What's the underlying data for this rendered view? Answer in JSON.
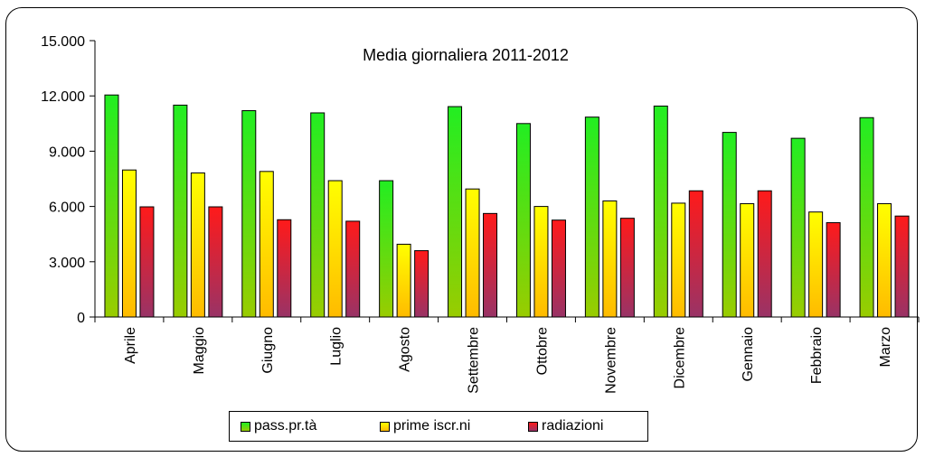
{
  "chart_data": {
    "type": "bar",
    "title": "Media giornaliera 2011-2012",
    "xlabel": "",
    "ylabel": "",
    "ylim": [
      0,
      15000
    ],
    "yticks": [
      "0",
      "3.000",
      "6.000",
      "9.000",
      "12.000",
      "15.000"
    ],
    "ytick_values": [
      0,
      3000,
      6000,
      9000,
      12000,
      15000
    ],
    "grid": false,
    "legend_position": "bottom",
    "categories": [
      "Aprile",
      "Maggio",
      "Giugno",
      "Luglio",
      "Agosto",
      "Settembre",
      "Ottobre",
      "Novembre",
      "Dicembre",
      "Gennaio",
      "Febbraio",
      "Marzo"
    ],
    "series": [
      {
        "name": "pass.pr.tà",
        "color_top": "#22ee22",
        "color_bottom": "#99cc00",
        "values": [
          12050,
          11500,
          11200,
          11080,
          7400,
          11420,
          10500,
          10850,
          11450,
          10020,
          9700,
          10820
        ]
      },
      {
        "name": "prime iscr.ni",
        "color_top": "#ffff00",
        "color_bottom": "#ffbb00",
        "values": [
          7980,
          7820,
          7900,
          7400,
          3950,
          6950,
          6000,
          6300,
          6180,
          6150,
          5700,
          6150
        ]
      },
      {
        "name": "radiazioni",
        "color_top": "#ff1a1a",
        "color_bottom": "#993366",
        "values": [
          5980,
          5980,
          5280,
          5200,
          3600,
          5620,
          5260,
          5360,
          6850,
          6850,
          5120,
          5480
        ]
      }
    ]
  }
}
